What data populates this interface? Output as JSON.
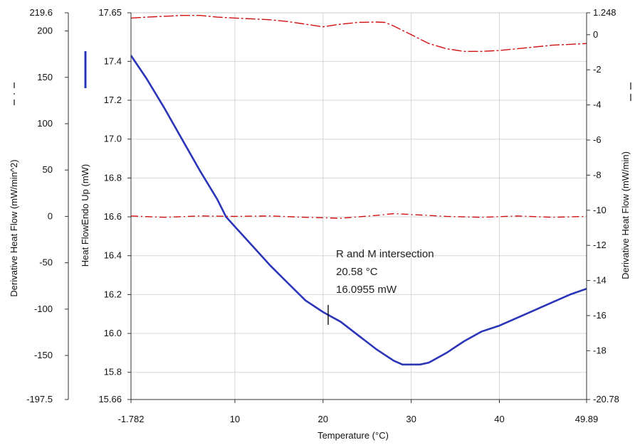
{
  "chart_data": {
    "type": "line",
    "xlabel": "Temperature (°C)",
    "xlim": [
      -1.782,
      49.89
    ],
    "x_ticks": [
      -1.782,
      10,
      20,
      30,
      40,
      49.89
    ],
    "x_tick_labels": [
      "-1.782",
      "10",
      "20",
      "30",
      "40",
      "49.89"
    ],
    "grid": true,
    "axes": {
      "heat_flow": {
        "label": "Heat FlowEndo Up (mW)",
        "range": [
          15.66,
          17.65
        ],
        "ticks": [
          15.66,
          15.8,
          16.0,
          16.2,
          16.4,
          16.6,
          16.8,
          17.0,
          17.2,
          17.4,
          17.65
        ],
        "tick_labels": [
          "15.66",
          "15.8",
          "16.0",
          "16.2",
          "16.4",
          "16.6",
          "16.8",
          "17.0",
          "17.2",
          "17.4",
          "17.65"
        ],
        "legend_line": "solid",
        "color": "#2b35b8"
      },
      "deriv_min2": {
        "label": "Derivative Heat Flow (mW/min^2)",
        "range": [
          -197.5,
          219.6
        ],
        "ticks": [
          -197.5,
          -150,
          -100,
          -50,
          0,
          50,
          100,
          150,
          200,
          219.6
        ],
        "tick_labels": [
          "-197.5",
          "-150",
          "-100",
          "-50",
          "0",
          "50",
          "100",
          "150",
          "200",
          "219.6"
        ],
        "legend_line": "dash-dot",
        "color": "#d01010"
      },
      "deriv_min": {
        "label": "Derivative Heat Flow (mW/min)",
        "range": [
          -20.78,
          1.248
        ],
        "ticks": [
          -20.78,
          -18,
          -16,
          -14,
          -12,
          -10,
          -8,
          -6,
          -4,
          -2,
          0,
          1.248
        ],
        "tick_labels": [
          "-20.78",
          "-18",
          "-16",
          "-14",
          "-12",
          "-10",
          "-8",
          "-6",
          "-4",
          "-2",
          "0",
          "1.248"
        ],
        "legend_line": "long-dash",
        "color": "#d01010"
      }
    },
    "series": [
      {
        "axis": "heat_flow",
        "style": "solid",
        "color": "#2b35b8",
        "x": [
          -1.782,
          0,
          2,
          4,
          6,
          8,
          9,
          10,
          12,
          14,
          16,
          18,
          20,
          22,
          24,
          26,
          28,
          29,
          30,
          31,
          32,
          34,
          36,
          38,
          40,
          42,
          44,
          46,
          48,
          49.89
        ],
        "y": [
          17.43,
          17.31,
          17.16,
          17.0,
          16.84,
          16.69,
          16.6,
          16.55,
          16.45,
          16.35,
          16.26,
          16.17,
          16.11,
          16.06,
          15.99,
          15.92,
          15.86,
          15.84,
          15.84,
          15.84,
          15.85,
          15.9,
          15.96,
          16.01,
          16.04,
          16.08,
          16.12,
          16.16,
          16.2,
          16.23
        ]
      },
      {
        "axis": "deriv_min",
        "style": "long-dash",
        "color": "#d01010",
        "x": [
          -1.782,
          0,
          2,
          4,
          6,
          8,
          10,
          12,
          14,
          16,
          18,
          20,
          22,
          24,
          26,
          27,
          28,
          30,
          32,
          34,
          36,
          38,
          40,
          42,
          44,
          46,
          48,
          49.89
        ],
        "y": [
          0.95,
          1.0,
          1.05,
          1.1,
          1.1,
          1.0,
          0.95,
          0.9,
          0.85,
          0.75,
          0.6,
          0.45,
          0.6,
          0.7,
          0.72,
          0.7,
          0.5,
          0.0,
          -0.5,
          -0.8,
          -0.95,
          -0.95,
          -0.9,
          -0.8,
          -0.7,
          -0.6,
          -0.55,
          -0.5
        ]
      },
      {
        "axis": "deriv_min2",
        "style": "dash-dot",
        "color": "#d01010",
        "x": [
          -1.782,
          2,
          6,
          10,
          14,
          18,
          22,
          26,
          28,
          30,
          34,
          38,
          42,
          46,
          49.89
        ],
        "y": [
          0.5,
          -1.0,
          0.5,
          0.0,
          0.5,
          -1.0,
          -2.0,
          1.0,
          3.0,
          2.0,
          0.0,
          -1.0,
          0.5,
          -1.0,
          0.0
        ]
      }
    ],
    "annotation": {
      "lines": [
        "R and M intersection",
        "20.58 °C",
        "16.0955 mW"
      ],
      "marker": {
        "x": 20.58,
        "y": 16.0955
      }
    }
  }
}
